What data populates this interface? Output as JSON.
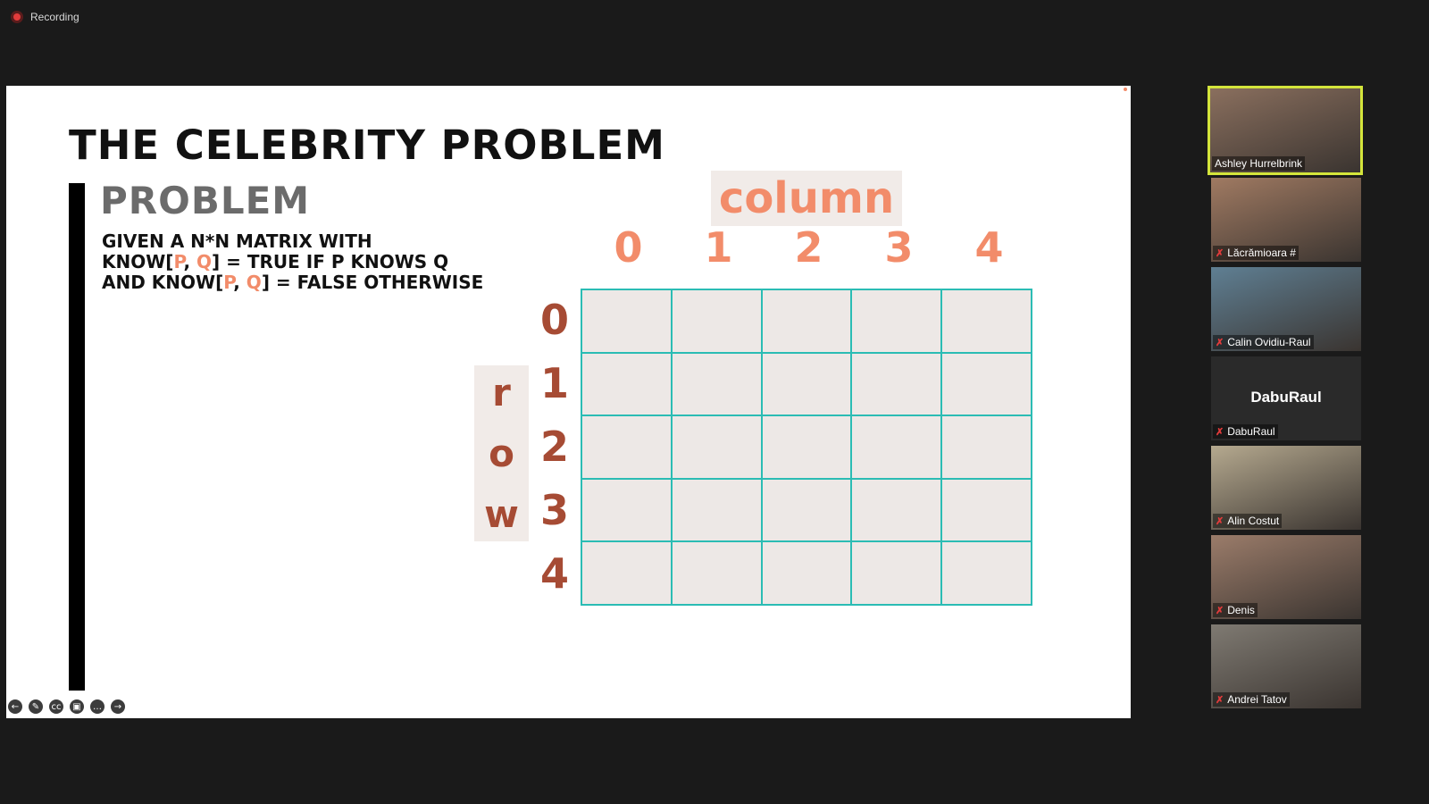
{
  "recording": {
    "label": "Recording"
  },
  "slide": {
    "title": "THE CELEBRITY PROBLEM",
    "subtitle": "PROBLEM",
    "lines": [
      [
        "GIVEN A N*N MATRIX WITH"
      ],
      [
        "KNOW[",
        "P",
        ", ",
        "Q",
        "] = TRUE IF P KNOWS Q"
      ],
      [
        "AND KNOW[",
        "P",
        ", ",
        "Q",
        "] = FALSE OTHERWISE"
      ]
    ],
    "column_word": "column",
    "row_word": [
      "r",
      "o",
      "w"
    ],
    "columns": [
      "0",
      "1",
      "2",
      "3",
      "4"
    ],
    "rows": [
      "0",
      "1",
      "2",
      "3",
      "4"
    ]
  },
  "toolbar": {
    "buttons": [
      {
        "name": "prev-slide-icon",
        "glyph": "←"
      },
      {
        "name": "pen-icon",
        "glyph": "✎"
      },
      {
        "name": "captions-icon",
        "glyph": "cc"
      },
      {
        "name": "video-off-icon",
        "glyph": "▣"
      },
      {
        "name": "more-icon",
        "glyph": "…"
      },
      {
        "name": "next-slide-icon",
        "glyph": "→"
      }
    ]
  },
  "participants": [
    {
      "name": "Ashley Hurrelbrink",
      "active": true,
      "muted": false,
      "video_color": "#8a6f5e"
    },
    {
      "name": "Lăcrămioara #",
      "active": false,
      "muted": true,
      "video_color": "#a07a62"
    },
    {
      "name": "Calin Ovidiu-Raul",
      "active": false,
      "muted": true,
      "video_color": "#5f7f93"
    },
    {
      "name": "DabuRaul",
      "active": false,
      "muted": true,
      "avatar_text": "DabuRaul"
    },
    {
      "name": "Alin Costut",
      "active": false,
      "muted": true,
      "video_color": "#b5a98f"
    },
    {
      "name": "Denis",
      "active": false,
      "muted": true,
      "video_color": "#9b7c6a"
    },
    {
      "name": "Andrei Tatov",
      "active": false,
      "muted": true,
      "video_color": "#7f7a72"
    }
  ],
  "colors": {
    "accent_orange": "#f28c6a",
    "accent_brown": "#a64b34",
    "grid_teal": "#2bbcb4",
    "active_speaker": "#d4e53b"
  }
}
